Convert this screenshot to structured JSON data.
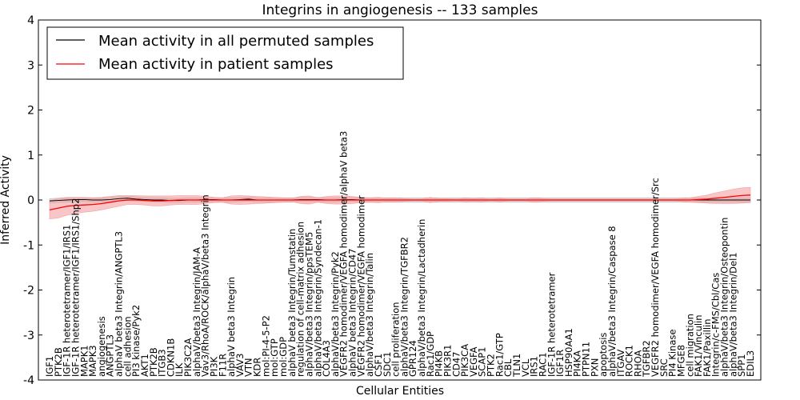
{
  "chart_data": {
    "type": "line",
    "title": "Integrins in angiogenesis -- 133 samples",
    "xlabel": "Cellular Entities",
    "ylabel": "Inferred Activity",
    "ylim": [
      -4,
      4
    ],
    "yticks": [
      "-4",
      "-3",
      "-2",
      "-1",
      "0",
      "1",
      "2",
      "3",
      "4"
    ],
    "legend_position": "top-left",
    "grid": false,
    "categories": [
      "IGF1",
      "PTK2B",
      "IGF-1R heterotetramer/IGF1/IRS1",
      "IGF-1R heterotetramer/IGF1/IRS1/Shp2",
      "MAPK1",
      "MAPK3",
      "angiogenesis",
      "ANGPTL3",
      "alphaV beta3 Integrin/ANGPTL3",
      "cell adhesion",
      "PI3 kinase/Pyk2",
      "AKT1",
      "PTK2B",
      "ITGB3",
      "CDKN1B",
      "ILK",
      "PIK3C2A",
      "alphaV/beta3 Integrin/JAM-A",
      "Vav3/RhoA/ROCK/alphaV/beta3 Integrin",
      "PI3K",
      "F11R",
      "alphaV beta3 Integrin",
      "VAV3",
      "VTN",
      "KDR",
      "mol:PI-4-5-P2",
      "mol:GTP",
      "mol:GDP",
      "alphaV beta3 Integrin/Tumstatin",
      "regulation of cell-matrix adhesion",
      "alphaV/beta3 Integrin/ppsTEM5",
      "alphaV/beta3 Integrin/Syndecan-1",
      "COL4A3",
      "alphaV/beta3 Integrin/Pyk2",
      "VEGFR2 homodimer/VEGFA homodimer/alphaV beta3",
      "alphaV beta3 Integrin/CD47",
      "VEGFR2 homodimer/VEGFA homodimer",
      "alphaV/beta3 Integrin/Talin",
      "CSF1",
      "SDC1",
      "cell proliferation",
      "alphaV/beta3 Integrin/TGFBR2",
      "GPR124",
      "alphaV/beta3 Integrin/Lactadherin",
      "Rac1/GDP",
      "PI4KB",
      "PIK3R1",
      "CD47",
      "PIK3CA",
      "VEGFA",
      "SCAP1",
      "PTK2",
      "Rac1/GTP",
      "CBL",
      "TLN1",
      "VCL",
      "IRS1",
      "RAC1",
      "IGF-1R heterotetramer",
      "IGF1R",
      "HSP90AA1",
      "PI4KA",
      "PTPN11",
      "PXN",
      "apoptosis",
      "alphaV/beta3 Integrin/Caspase 8",
      "ITGAV",
      "ROCK1",
      "RHOA",
      "TGFBR2",
      "VEGFR2 homodimer/VEGFA homodimer/Src",
      "SRC",
      "PI4 Kinase",
      "MFGE8",
      "cell migration",
      "FAK1/Vinculin",
      "FAK1/Paxillin",
      "Integrin/c-FMS/Cbl/Cas",
      "alphaV/beta3 Integrin/Osteopontin",
      "alphaV/beta3 Integrin/Del1",
      "SPP1",
      "EDIL3"
    ],
    "series": [
      {
        "name": "Mean activity in all permuted samples",
        "color": "#000000",
        "values": [
          -0.02,
          -0.01,
          0.0,
          0.01,
          0.01,
          0.0,
          0.0,
          0.01,
          0.03,
          0.04,
          0.02,
          0.01,
          0.0,
          0.0,
          -0.01,
          -0.01,
          0.0,
          0.0,
          0.01,
          0.01,
          0.0,
          0.0,
          0.01,
          0.02,
          0.0,
          0.0,
          0.0,
          0.0,
          0.0,
          0.01,
          0.01,
          0.01,
          0.0,
          0.0,
          0.01,
          0.01,
          0.0,
          0.0,
          0.0,
          0.0,
          0.0,
          0.0,
          0.0,
          0.0,
          0.0,
          0.0,
          0.0,
          0.0,
          0.0,
          0.0,
          0.0,
          0.0,
          0.0,
          0.0,
          0.0,
          0.0,
          0.0,
          0.0,
          0.0,
          0.0,
          0.0,
          0.0,
          0.0,
          0.0,
          0.0,
          0.0,
          0.0,
          0.0,
          0.0,
          0.0,
          0.0,
          0.0,
          0.0,
          0.0,
          0.0,
          0.0,
          0.0,
          0.0,
          0.0,
          0.0,
          0.0,
          0.0
        ],
        "band": 0.05,
        "band_color": "#bbbbbb"
      },
      {
        "name": "Mean activity in patient samples",
        "color": "#ff0000",
        "values": [
          -0.22,
          -0.18,
          -0.14,
          -0.12,
          -0.11,
          -0.1,
          -0.08,
          -0.05,
          -0.02,
          0.0,
          0.0,
          -0.01,
          -0.02,
          -0.02,
          -0.01,
          0.0,
          0.0,
          0.0,
          0.0,
          0.0,
          0.0,
          0.0,
          0.0,
          0.0,
          0.0,
          0.0,
          0.0,
          0.0,
          0.0,
          0.0,
          0.0,
          0.0,
          0.0,
          0.0,
          0.0,
          0.0,
          0.0,
          0.0,
          0.0,
          0.0,
          0.0,
          0.0,
          0.0,
          0.0,
          0.0,
          0.0,
          0.0,
          0.0,
          0.0,
          0.0,
          0.0,
          0.0,
          0.0,
          0.0,
          0.0,
          0.0,
          0.0,
          0.0,
          0.0,
          0.0,
          0.0,
          0.0,
          0.0,
          0.0,
          0.0,
          0.0,
          0.0,
          0.0,
          0.0,
          0.0,
          0.0,
          0.0,
          0.0,
          0.0,
          0.0,
          0.01,
          0.02,
          0.04,
          0.06,
          0.08,
          0.1,
          0.11
        ],
        "band": [
          0.2,
          0.22,
          0.2,
          0.18,
          0.16,
          0.15,
          0.14,
          0.13,
          0.12,
          0.1,
          0.1,
          0.1,
          0.11,
          0.11,
          0.1,
          0.1,
          0.1,
          0.1,
          0.08,
          0.06,
          0.05,
          0.09,
          0.1,
          0.09,
          0.08,
          0.07,
          0.06,
          0.05,
          0.04,
          0.08,
          0.09,
          0.05,
          0.08,
          0.09,
          0.09,
          0.08,
          0.06,
          0.05,
          0.06,
          0.04,
          0.05,
          0.03,
          0.02,
          0.02,
          0.06,
          0.03,
          0.03,
          0.02,
          0.04,
          0.03,
          0.04,
          0.02,
          0.04,
          0.02,
          0.02,
          0.02,
          0.05,
          0.03,
          0.02,
          0.02,
          0.02,
          0.02,
          0.02,
          0.02,
          0.02,
          0.02,
          0.02,
          0.02,
          0.02,
          0.02,
          0.02,
          0.02,
          0.02,
          0.03,
          0.05,
          0.07,
          0.09,
          0.12,
          0.14,
          0.16,
          0.17,
          0.17
        ],
        "band_color": "#f4a0a0"
      }
    ]
  }
}
